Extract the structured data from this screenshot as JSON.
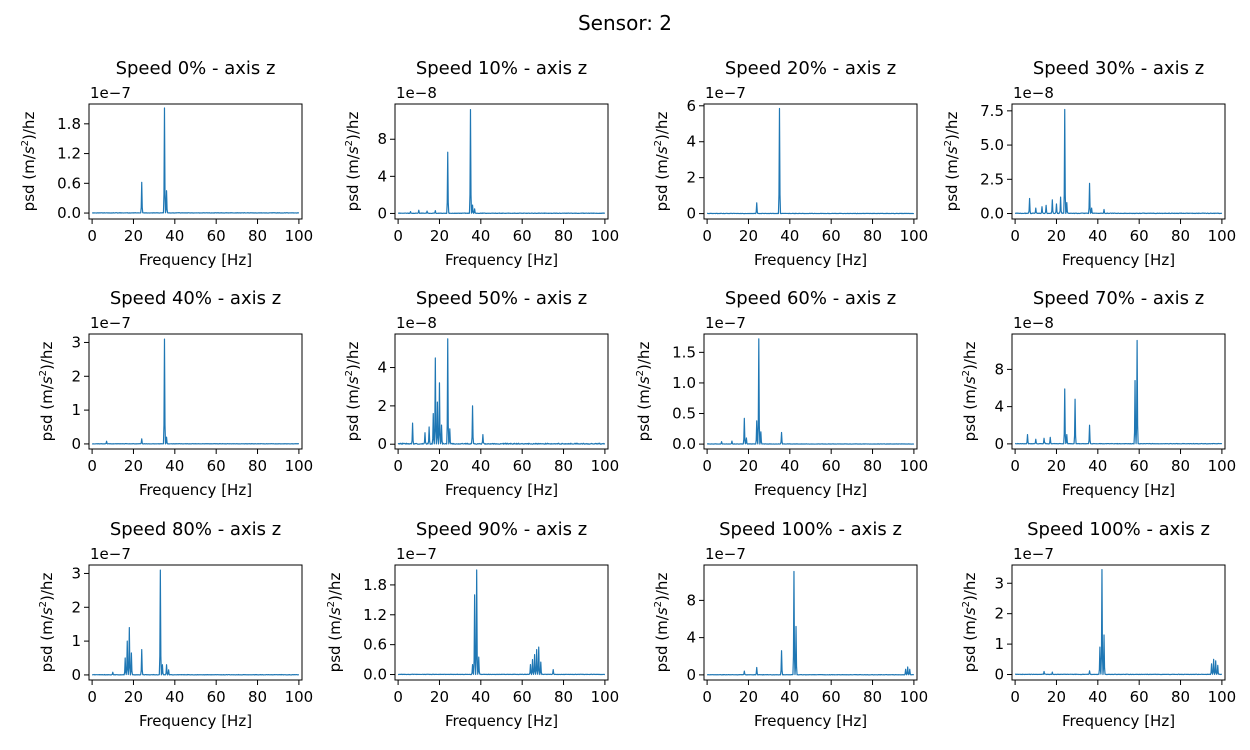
{
  "suptitle": "Sensor: 2",
  "colors": {
    "line": "#1f77b4"
  },
  "chart_data": [
    {
      "type": "line",
      "title": "Speed 0% - axis z",
      "xlabel": "Frequency [Hz]",
      "ylabel": "psd (m/s²)/hz",
      "offset_label": "1e−7",
      "xlim": [
        -1.5,
        101.5
      ],
      "ylim": [
        -0.12,
        2.2
      ],
      "xticks": [
        0,
        20,
        40,
        60,
        80,
        100
      ],
      "yticks": [
        0.0,
        0.6,
        1.2,
        1.8
      ],
      "ytick_labels": [
        "0.0",
        "0.6",
        "1.2",
        "1.8"
      ],
      "noise": 0.012,
      "peaks": [
        [
          24,
          0.62
        ],
        [
          35,
          2.12
        ],
        [
          36,
          0.45
        ]
      ]
    },
    {
      "type": "line",
      "title": "Speed 10% - axis z",
      "xlabel": "Frequency [Hz]",
      "ylabel": "psd (m/s²)/hz",
      "offset_label": "1e−8",
      "xlim": [
        -1.5,
        101.5
      ],
      "ylim": [
        -0.6,
        11.8
      ],
      "xticks": [
        0,
        20,
        40,
        60,
        80,
        100
      ],
      "yticks": [
        0,
        4,
        8
      ],
      "ytick_labels": [
        "0",
        "4",
        "8"
      ],
      "noise": 0.08,
      "peaks": [
        [
          6,
          0.2
        ],
        [
          10,
          0.35
        ],
        [
          14,
          0.25
        ],
        [
          18,
          0.3
        ],
        [
          24,
          6.6
        ],
        [
          35,
          11.2
        ],
        [
          36,
          0.9
        ],
        [
          37,
          0.5
        ]
      ]
    },
    {
      "type": "line",
      "title": "Speed 20% - axis z",
      "xlabel": "Frequency [Hz]",
      "ylabel": "psd (m/s²)/hz",
      "offset_label": "1e−7",
      "xlim": [
        -1.5,
        101.5
      ],
      "ylim": [
        -0.3,
        6.1
      ],
      "xticks": [
        0,
        20,
        40,
        60,
        80,
        100
      ],
      "yticks": [
        0,
        2,
        4,
        6
      ],
      "ytick_labels": [
        "0",
        "2",
        "4",
        "6"
      ],
      "noise": 0.03,
      "peaks": [
        [
          24,
          0.6
        ],
        [
          35,
          5.85
        ]
      ]
    },
    {
      "type": "line",
      "title": "Speed 30% - axis z",
      "xlabel": "Frequency [Hz]",
      "ylabel": "psd (m/s²)/hz",
      "offset_label": "1e−8",
      "xlim": [
        -1.5,
        101.5
      ],
      "ylim": [
        -0.4,
        8.0
      ],
      "xticks": [
        0,
        20,
        40,
        60,
        80,
        100
      ],
      "yticks": [
        0.0,
        2.5,
        5.0,
        7.5
      ],
      "ytick_labels": [
        "0.0",
        "2.5",
        "5.0",
        "7.5"
      ],
      "noise": 0.06,
      "peaks": [
        [
          7,
          1.1
        ],
        [
          10,
          0.4
        ],
        [
          13,
          0.5
        ],
        [
          15,
          0.6
        ],
        [
          18,
          1.0
        ],
        [
          20,
          0.7
        ],
        [
          22,
          1.2
        ],
        [
          24,
          7.6
        ],
        [
          25,
          0.8
        ],
        [
          36,
          2.2
        ],
        [
          37,
          0.4
        ],
        [
          43,
          0.3
        ]
      ]
    },
    {
      "type": "line",
      "title": "Speed 40% - axis z",
      "xlabel": "Frequency [Hz]",
      "ylabel": "psd (m/s²)/hz",
      "offset_label": "1e−7",
      "xlim": [
        -1.5,
        101.5
      ],
      "ylim": [
        -0.15,
        3.25
      ],
      "xticks": [
        0,
        20,
        40,
        60,
        80,
        100
      ],
      "yticks": [
        0,
        1,
        2,
        3
      ],
      "ytick_labels": [
        "0",
        "1",
        "2",
        "3"
      ],
      "noise": 0.015,
      "peaks": [
        [
          7,
          0.08
        ],
        [
          24,
          0.15
        ],
        [
          35,
          3.1
        ],
        [
          36,
          0.2
        ]
      ]
    },
    {
      "type": "line",
      "title": "Speed 50% - axis z",
      "xlabel": "Frequency [Hz]",
      "ylabel": "psd (m/s²)/hz",
      "offset_label": "1e−8",
      "xlim": [
        -1.5,
        101.5
      ],
      "ylim": [
        -0.25,
        5.75
      ],
      "xticks": [
        0,
        20,
        40,
        60,
        80,
        100
      ],
      "yticks": [
        0,
        2,
        4
      ],
      "ytick_labels": [
        "0",
        "2",
        "4"
      ],
      "noise": 0.09,
      "peaks": [
        [
          7,
          1.1
        ],
        [
          13,
          0.6
        ],
        [
          15,
          0.9
        ],
        [
          17,
          1.6
        ],
        [
          18,
          4.5
        ],
        [
          19,
          2.2
        ],
        [
          20,
          3.2
        ],
        [
          21,
          1.0
        ],
        [
          24,
          5.5
        ],
        [
          25,
          0.8
        ],
        [
          36,
          2.0
        ],
        [
          41,
          0.5
        ]
      ]
    },
    {
      "type": "line",
      "title": "Speed 60% - axis z",
      "xlabel": "Frequency [Hz]",
      "ylabel": "psd (m/s²)/hz",
      "offset_label": "1e−7",
      "xlim": [
        -1.5,
        101.5
      ],
      "ylim": [
        -0.08,
        1.8
      ],
      "xticks": [
        0,
        20,
        40,
        60,
        80,
        100
      ],
      "yticks": [
        0.0,
        0.5,
        1.0,
        1.5
      ],
      "ytick_labels": [
        "0.0",
        "0.5",
        "1.0",
        "1.5"
      ],
      "noise": 0.008,
      "peaks": [
        [
          7,
          0.04
        ],
        [
          12,
          0.05
        ],
        [
          18,
          0.42
        ],
        [
          19,
          0.1
        ],
        [
          24,
          0.38
        ],
        [
          25,
          1.72
        ],
        [
          26,
          0.2
        ],
        [
          36,
          0.19
        ]
      ]
    },
    {
      "type": "line",
      "title": "Speed 70% - axis z",
      "xlabel": "Frequency [Hz]",
      "ylabel": "psd (m/s²)/hz",
      "offset_label": "1e−8",
      "xlim": [
        -1.5,
        101.5
      ],
      "ylim": [
        -0.55,
        11.8
      ],
      "xticks": [
        0,
        20,
        40,
        60,
        80,
        100
      ],
      "yticks": [
        0,
        4,
        8
      ],
      "ytick_labels": [
        "0",
        "4",
        "8"
      ],
      "noise": 0.07,
      "peaks": [
        [
          6,
          1.0
        ],
        [
          10,
          0.5
        ],
        [
          14,
          0.6
        ],
        [
          17,
          0.7
        ],
        [
          24,
          5.9
        ],
        [
          25,
          1.0
        ],
        [
          29,
          4.8
        ],
        [
          36,
          2.0
        ],
        [
          58,
          6.8
        ],
        [
          59,
          11.1
        ]
      ]
    },
    {
      "type": "line",
      "title": "Speed 80% - axis z",
      "xlabel": "Frequency [Hz]",
      "ylabel": "psd (m/s²)/hz",
      "offset_label": "1e−7",
      "xlim": [
        -1.5,
        101.5
      ],
      "ylim": [
        -0.15,
        3.25
      ],
      "xticks": [
        0,
        20,
        40,
        60,
        80,
        100
      ],
      "yticks": [
        0,
        1,
        2,
        3
      ],
      "ytick_labels": [
        "0",
        "1",
        "2",
        "3"
      ],
      "noise": 0.02,
      "peaks": [
        [
          10,
          0.08
        ],
        [
          16,
          0.5
        ],
        [
          17,
          1.0
        ],
        [
          18,
          1.4
        ],
        [
          19,
          0.65
        ],
        [
          24,
          0.75
        ],
        [
          33,
          3.1
        ],
        [
          34,
          0.3
        ],
        [
          36,
          0.3
        ],
        [
          37,
          0.15
        ]
      ]
    },
    {
      "type": "line",
      "title": "Speed 90% - axis z",
      "xlabel": "Frequency [Hz]",
      "ylabel": "psd (m/s²)/hz",
      "offset_label": "1e−7",
      "xlim": [
        -1.5,
        101.5
      ],
      "ylim": [
        -0.11,
        2.2
      ],
      "xticks": [
        0,
        20,
        40,
        60,
        80,
        100
      ],
      "yticks": [
        0.0,
        0.6,
        1.2,
        1.8
      ],
      "ytick_labels": [
        "0.0",
        "0.6",
        "1.2",
        "1.8"
      ],
      "noise": 0.012,
      "peaks": [
        [
          36,
          0.2
        ],
        [
          37,
          1.6
        ],
        [
          38,
          2.1
        ],
        [
          39,
          0.35
        ],
        [
          64,
          0.2
        ],
        [
          65,
          0.3
        ],
        [
          66,
          0.4
        ],
        [
          67,
          0.5
        ],
        [
          68,
          0.55
        ],
        [
          69,
          0.25
        ],
        [
          75,
          0.1
        ]
      ]
    },
    {
      "type": "line",
      "title": "Speed 100% - axis z",
      "xlabel": "Frequency [Hz]",
      "ylabel": "psd (m/s²)/hz",
      "offset_label": "1e−7",
      "xlim": [
        -1.5,
        101.5
      ],
      "ylim": [
        -0.55,
        11.8
      ],
      "xticks": [
        0,
        20,
        40,
        60,
        80,
        100
      ],
      "yticks": [
        0,
        4,
        8
      ],
      "ytick_labels": [
        "0",
        "4",
        "8"
      ],
      "noise": 0.06,
      "peaks": [
        [
          18,
          0.4
        ],
        [
          24,
          0.8
        ],
        [
          36,
          2.6
        ],
        [
          42,
          11.1
        ],
        [
          43,
          5.2
        ],
        [
          96,
          0.6
        ],
        [
          97,
          0.85
        ],
        [
          98,
          0.6
        ]
      ]
    },
    {
      "type": "line",
      "title": "Speed 100% - axis z",
      "xlabel": "Frequency [Hz]",
      "ylabel": "psd (m/s²)/hz",
      "offset_label": "1e−7",
      "xlim": [
        -1.5,
        101.5
      ],
      "ylim": [
        -0.18,
        3.6
      ],
      "xticks": [
        0,
        20,
        40,
        60,
        80,
        100
      ],
      "yticks": [
        0,
        1,
        2,
        3
      ],
      "ytick_labels": [
        "0",
        "1",
        "2",
        "3"
      ],
      "noise": 0.02,
      "peaks": [
        [
          14,
          0.1
        ],
        [
          18,
          0.08
        ],
        [
          36,
          0.12
        ],
        [
          41,
          0.9
        ],
        [
          42,
          3.45
        ],
        [
          43,
          1.3
        ],
        [
          95,
          0.35
        ],
        [
          96,
          0.5
        ],
        [
          97,
          0.45
        ],
        [
          98,
          0.3
        ]
      ]
    }
  ]
}
